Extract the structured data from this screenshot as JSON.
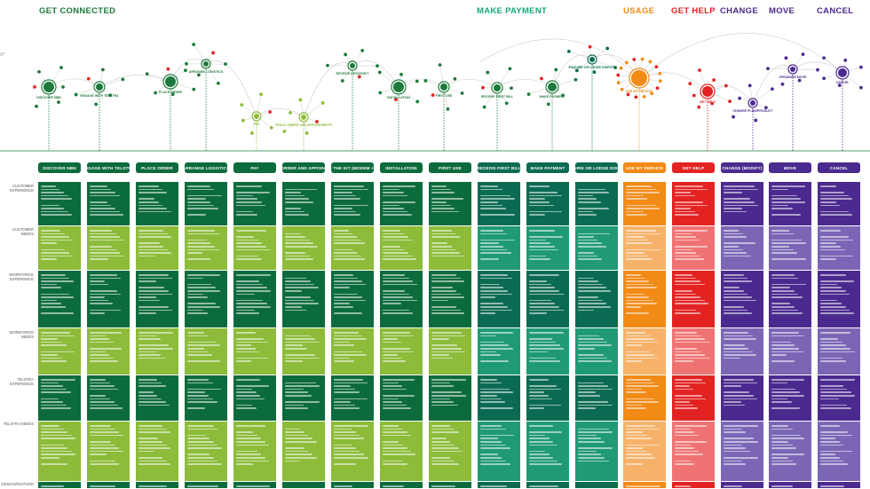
{
  "phases": [
    {
      "label": "GET CONNECTED",
      "color": "#1e7a3c"
    },
    {
      "label": "MAKE PAYMENT",
      "color": "#17a77a"
    },
    {
      "label": "USAGE",
      "color": "#f28a16"
    },
    {
      "label": "GET HELP",
      "color": "#e32322"
    },
    {
      "label": "CHANGE",
      "color": "#4b2a8f"
    },
    {
      "label": "MOVE",
      "color": "#4b2a8f"
    },
    {
      "label": "CANCEL",
      "color": "#4b2a8f"
    }
  ],
  "row_labels": [
    "CUSTOMER EXPERIENCE",
    "CUSTOMER NEEDS",
    "WORKFORCE EXPERIENCE",
    "WORKFORCE NEEDS",
    "TELSTRA EXPERIENCE",
    "TELSTRA NEEDS",
    "DESIGN/FEATURE"
  ],
  "stages": [
    {
      "label": "DISCOVER NBN",
      "group": "connected"
    },
    {
      "label": "ENGAGE WITH TELSTRA",
      "group": "connected"
    },
    {
      "label": "PLACE ORDER",
      "group": "connected"
    },
    {
      "label": "ARRANGE LOGISTICS",
      "group": "connected"
    },
    {
      "label": "PAY",
      "group": "connected"
    },
    {
      "label": "TRACK ORDER AND APPOINTMENTS",
      "group": "connected"
    },
    {
      "label": "RECEIVE THE KIT (modem + phone)",
      "group": "connected"
    },
    {
      "label": "INSTALLATION",
      "group": "connected"
    },
    {
      "label": "FIRST USE",
      "group": "connected"
    },
    {
      "label": "RECEIVE FIRST BILL",
      "group": "payment"
    },
    {
      "label": "MAKE PAYMENT",
      "group": "payment"
    },
    {
      "label": "ENQUIRE OR LODGE DISPUTE",
      "group": "payment"
    },
    {
      "label": "USE MY SERVICE",
      "group": "usage"
    },
    {
      "label": "GET HELP",
      "group": "help"
    },
    {
      "label": "CHANGE (MODIFY)",
      "group": "change"
    },
    {
      "label": "MOVE",
      "group": "change"
    },
    {
      "label": "CANCEL",
      "group": "change"
    }
  ],
  "map_nodes": [
    {
      "label": "DISCOVER NBN"
    },
    {
      "label": "ENGAGE WITH TELSTRA"
    },
    {
      "label": "PLACE ORDER"
    },
    {
      "label": "ARRANGE LOGISTICS"
    },
    {
      "label": "PAY"
    },
    {
      "label": "TRACK ORDER AND APPOINTMENTS"
    },
    {
      "label": "RECEIVE DEVICE/KIT"
    },
    {
      "label": "INSTALLATION"
    },
    {
      "label": "FIRST USE"
    },
    {
      "label": "RECEIVE FIRST BILL"
    },
    {
      "label": "MAKE PAYMENT"
    },
    {
      "label": "ENQUIRE OR LODGE DISPUTE"
    },
    {
      "label": "USE MY SERVICE"
    },
    {
      "label": "GET HELP"
    },
    {
      "label": "CHANGE PLAN/PRODUCT"
    },
    {
      "label": "ORGANISE MOVE"
    },
    {
      "label": "CANCEL"
    }
  ],
  "colors": {
    "connected_dark": "#0c6b3c",
    "connected_light": "#8cbc3a",
    "payment_dark": "#0b6b52",
    "payment_light": "#1f9a74",
    "usage_dark": "#f28a16",
    "usage_light": "#f7b26a",
    "help_dark": "#e32322",
    "help_light": "#f07373",
    "change_dark": "#4b2a8f",
    "change_light": "#7b66b6",
    "connector": "#cccccc"
  }
}
